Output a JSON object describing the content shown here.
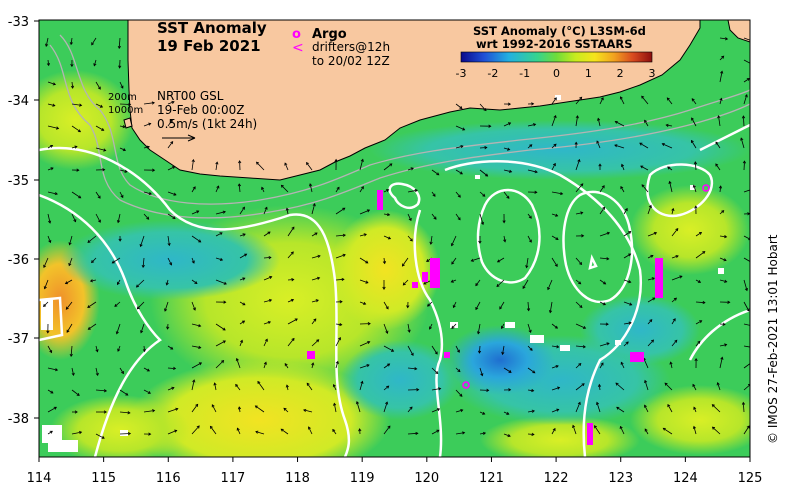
{
  "title": {
    "line1": "SST Anomaly",
    "line2": "19 Feb 2021"
  },
  "legend": {
    "argo_marker": "o",
    "argo_label": "Argo",
    "drifter_marker": "<",
    "drifter_line1": "drifters@12h",
    "drifter_line2": "to 20/02 12Z",
    "accent_color": "#ff00ff"
  },
  "colorbar": {
    "title_line1": "SST Anomaly (°C) L3SM-6d",
    "title_line2": "wrt 1992-2016 SSTAARS",
    "ticks": [
      "-3",
      "-2",
      "-1",
      "0",
      "1",
      "2",
      "3"
    ],
    "colors": [
      "#0a0a8c",
      "#1f4fd6",
      "#23b0e0",
      "#36d48e",
      "#6fdc3a",
      "#c8ec1e",
      "#f6e41c",
      "#f2a31f",
      "#d84a1f",
      "#8c0e0e"
    ]
  },
  "info": {
    "isobath1": "200m",
    "isobath2": "1000m",
    "model_line1": "NRT00 GSL",
    "model_line2": "19-Feb 00:00Z",
    "model_line3": "0.5m/s (1kt 24h)"
  },
  "axes": {
    "x_ticks": [
      "114",
      "115",
      "116",
      "117",
      "118",
      "119",
      "120",
      "121",
      "122",
      "123",
      "124",
      "125"
    ],
    "y_ticks": [
      "-33",
      "-34",
      "-35",
      "-36",
      "-37",
      "-38"
    ]
  },
  "credit": "© IMOS 27-Feb-2021 13:01 Hobart",
  "colors": {
    "land": "#f8c8a0",
    "ocean_base": "#3ccc5a",
    "contour": "#ffffff",
    "vector": "#000000"
  }
}
